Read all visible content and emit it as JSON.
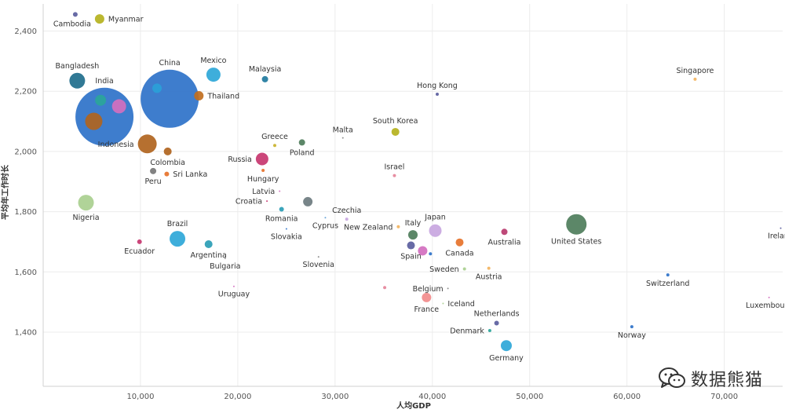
{
  "chart_data": {
    "type": "scatter",
    "bubble": true,
    "xlabel": "人均GDP",
    "ylabel": "平均年工作时长",
    "xlim": [
      0,
      76000
    ],
    "ylim": [
      1220,
      2490
    ],
    "xticks": [
      "10,000",
      "20,000",
      "30,000",
      "40,000",
      "50,000",
      "60,000",
      "70,000"
    ],
    "xtick_values": [
      10000,
      20000,
      30000,
      40000,
      50000,
      60000,
      70000
    ],
    "yticks": [
      "1,400",
      "1,600",
      "1,800",
      "2,000",
      "2,200",
      "2,400"
    ],
    "ytick_values": [
      1400,
      1600,
      1800,
      2000,
      2200,
      2400
    ],
    "grid": true,
    "points": [
      {
        "label": "Cambodia",
        "x": 3300,
        "y": 2455,
        "r": 3,
        "color": "#5b5e9e",
        "label_pos": "below-left"
      },
      {
        "label": "Myanmar",
        "x": 5800,
        "y": 2440,
        "r": 6,
        "color": "#b5b21e",
        "label_pos": "right"
      },
      {
        "label": "Bangladesh",
        "x": 3500,
        "y": 2235,
        "r": 10,
        "color": "#1f6e8c",
        "label_pos": "above"
      },
      {
        "label": "India",
        "x": 6300,
        "y": 2115,
        "r": 37,
        "color": "#2e72c9",
        "label_pos": "above"
      },
      {
        "label": "",
        "x": 5900,
        "y": 2170,
        "r": 7,
        "color": "#2aa59a",
        "label_pos": "none"
      },
      {
        "label": "",
        "x": 7800,
        "y": 2150,
        "r": 9,
        "color": "#d36fbf",
        "label_pos": "none"
      },
      {
        "label": "",
        "x": 5200,
        "y": 2100,
        "r": 11,
        "color": "#b0641e",
        "label_pos": "none"
      },
      {
        "label": "China",
        "x": 13000,
        "y": 2175,
        "r": 37,
        "color": "#2e72c9",
        "label_pos": "above"
      },
      {
        "label": "",
        "x": 11700,
        "y": 2210,
        "r": 6,
        "color": "#2aa0d8",
        "label_pos": "none"
      },
      {
        "label": "Thailand",
        "x": 16000,
        "y": 2185,
        "r": 6,
        "color": "#c06e1e",
        "label_pos": "right"
      },
      {
        "label": "Mexico",
        "x": 17500,
        "y": 2255,
        "r": 9,
        "color": "#2ea7d8",
        "label_pos": "above"
      },
      {
        "label": "Malaysia",
        "x": 22800,
        "y": 2240,
        "r": 4,
        "color": "#1f7a9e",
        "label_pos": "above"
      },
      {
        "label": "Indonesia",
        "x": 10700,
        "y": 2025,
        "r": 12,
        "color": "#b0641e",
        "label_pos": "left"
      },
      {
        "label": "Colombia",
        "x": 12800,
        "y": 2000,
        "r": 5,
        "color": "#b0641e",
        "label_pos": "below"
      },
      {
        "label": "Peru",
        "x": 11300,
        "y": 1935,
        "r": 4,
        "color": "#777777",
        "label_pos": "below"
      },
      {
        "label": "Sri Lanka",
        "x": 12700,
        "y": 1925,
        "r": 3,
        "color": "#e6722a",
        "label_pos": "right"
      },
      {
        "label": "Nigeria",
        "x": 4400,
        "y": 1830,
        "r": 10,
        "color": "#a9cf8f",
        "label_pos": "below"
      },
      {
        "label": "Greece",
        "x": 23800,
        "y": 2020,
        "r": 2,
        "color": "#c9b32c",
        "label_pos": "above"
      },
      {
        "label": "Poland",
        "x": 26600,
        "y": 2030,
        "r": 4,
        "color": "#4e7d5b",
        "label_pos": "below"
      },
      {
        "label": "Malta",
        "x": 30800,
        "y": 2045,
        "r": 1,
        "color": "#888888",
        "label_pos": "above"
      },
      {
        "label": "South Korea",
        "x": 36200,
        "y": 2065,
        "r": 5,
        "color": "#b5b21e",
        "label_pos": "above"
      },
      {
        "label": "Hong Kong",
        "x": 40500,
        "y": 2190,
        "r": 2,
        "color": "#5b5e9e",
        "label_pos": "above"
      },
      {
        "label": "Singapore",
        "x": 67000,
        "y": 2240,
        "r": 2,
        "color": "#f2b35e",
        "label_pos": "above"
      },
      {
        "label": "Russia",
        "x": 22500,
        "y": 1975,
        "r": 8,
        "color": "#c7366f",
        "label_pos": "left"
      },
      {
        "label": "Hungary",
        "x": 22600,
        "y": 1937,
        "r": 2,
        "color": "#e6722a",
        "label_pos": "below"
      },
      {
        "label": "Latvia",
        "x": 24300,
        "y": 1868,
        "r": 1,
        "color": "#d36fbf",
        "label_pos": "left"
      },
      {
        "label": "Croatia",
        "x": 23000,
        "y": 1835,
        "r": 1,
        "color": "#c7366f",
        "label_pos": "left"
      },
      {
        "label": "",
        "x": 27200,
        "y": 1833,
        "r": 6,
        "color": "#6d7b7f",
        "label_pos": "none"
      },
      {
        "label": "Romania",
        "x": 24500,
        "y": 1808,
        "r": 3,
        "color": "#2a9db5",
        "label_pos": "below"
      },
      {
        "label": "Slovakia",
        "x": 25000,
        "y": 1743,
        "r": 1,
        "color": "#2e72c9",
        "label_pos": "below"
      },
      {
        "label": "Israel",
        "x": 36100,
        "y": 1920,
        "r": 2,
        "color": "#e5849a",
        "label_pos": "above"
      },
      {
        "label": "Czechia",
        "x": 31200,
        "y": 1775,
        "r": 2,
        "color": "#c8a6e0",
        "label_pos": "above"
      },
      {
        "label": "Cyprus",
        "x": 29000,
        "y": 1780,
        "r": 1,
        "color": "#5b9bd5",
        "label_pos": "below"
      },
      {
        "label": "New Zealand",
        "x": 36500,
        "y": 1750,
        "r": 2,
        "color": "#f2b35e",
        "label_pos": "left"
      },
      {
        "label": "Italy",
        "x": 38000,
        "y": 1723,
        "r": 6,
        "color": "#4e7d5b",
        "label_pos": "above"
      },
      {
        "label": "Japan",
        "x": 40300,
        "y": 1737,
        "r": 8,
        "color": "#c8a6e0",
        "label_pos": "above"
      },
      {
        "label": "Spain",
        "x": 37800,
        "y": 1688,
        "r": 5,
        "color": "#5b5e9e",
        "label_pos": "below"
      },
      {
        "label": "",
        "x": 39000,
        "y": 1670,
        "r": 6,
        "color": "#d36fbf",
        "label_pos": "none"
      },
      {
        "label": "",
        "x": 39800,
        "y": 1660,
        "r": 2,
        "color": "#2e72c9",
        "label_pos": "none"
      },
      {
        "label": "Canada",
        "x": 42800,
        "y": 1698,
        "r": 5,
        "color": "#e6722a",
        "label_pos": "below"
      },
      {
        "label": "Australia",
        "x": 47400,
        "y": 1733,
        "r": 4,
        "color": "#b83a6e",
        "label_pos": "below"
      },
      {
        "label": "United States",
        "x": 54800,
        "y": 1758,
        "r": 13,
        "color": "#4e7d5b",
        "label_pos": "below"
      },
      {
        "label": "Ireland",
        "x": 75800,
        "y": 1745,
        "r": 1,
        "color": "#5b5e9e",
        "label_pos": "below"
      },
      {
        "label": "Sweden",
        "x": 43300,
        "y": 1610,
        "r": 2,
        "color": "#a9cf8f",
        "label_pos": "left"
      },
      {
        "label": "Austria",
        "x": 45800,
        "y": 1612,
        "r": 2,
        "color": "#f2b35e",
        "label_pos": "below"
      },
      {
        "label": "Belgium",
        "x": 41600,
        "y": 1545,
        "r": 1,
        "color": "#888888",
        "label_pos": "left"
      },
      {
        "label": "Slovenia",
        "x": 28300,
        "y": 1650,
        "r": 1,
        "color": "#888888",
        "label_pos": "below"
      },
      {
        "label": "",
        "x": 35100,
        "y": 1548,
        "r": 2,
        "color": "#e5849a",
        "label_pos": "none"
      },
      {
        "label": "France",
        "x": 39400,
        "y": 1515,
        "r": 6,
        "color": "#f28b8b",
        "label_pos": "below"
      },
      {
        "label": "Iceland",
        "x": 41100,
        "y": 1495,
        "r": 1,
        "color": "#a9cf8f",
        "label_pos": "right"
      },
      {
        "label": "Switzerland",
        "x": 64200,
        "y": 1590,
        "r": 2,
        "color": "#2e72c9",
        "label_pos": "below"
      },
      {
        "label": "Luxembourg",
        "x": 74600,
        "y": 1515,
        "r": 1,
        "color": "#d36fbf",
        "label_pos": "below"
      },
      {
        "label": "Netherlands",
        "x": 46600,
        "y": 1430,
        "r": 3,
        "color": "#5b5e9e",
        "label_pos": "above"
      },
      {
        "label": "Denmark",
        "x": 45900,
        "y": 1405,
        "r": 2,
        "color": "#2aa59a",
        "label_pos": "left"
      },
      {
        "label": "Norway",
        "x": 60500,
        "y": 1418,
        "r": 2,
        "color": "#2e72c9",
        "label_pos": "below"
      },
      {
        "label": "Germany",
        "x": 47600,
        "y": 1355,
        "r": 7,
        "color": "#2ea7d8",
        "label_pos": "below"
      },
      {
        "label": "Brazil",
        "x": 13800,
        "y": 1710,
        "r": 10,
        "color": "#2ea7d8",
        "label_pos": "above"
      },
      {
        "label": "Argentina",
        "x": 17000,
        "y": 1692,
        "r": 5,
        "color": "#2a9db5",
        "label_pos": "below"
      },
      {
        "label": "Ecuador",
        "x": 9900,
        "y": 1700,
        "r": 3,
        "color": "#c7366f",
        "label_pos": "below"
      },
      {
        "label": "Bulgaria",
        "x": 18700,
        "y": 1645,
        "r": 1,
        "color": "#888888",
        "label_pos": "below"
      },
      {
        "label": "Uruguay",
        "x": 19600,
        "y": 1552,
        "r": 1,
        "color": "#d36fbf",
        "label_pos": "below"
      }
    ]
  },
  "watermark": {
    "icon": "wechat-icon",
    "text": "数据熊猫"
  }
}
